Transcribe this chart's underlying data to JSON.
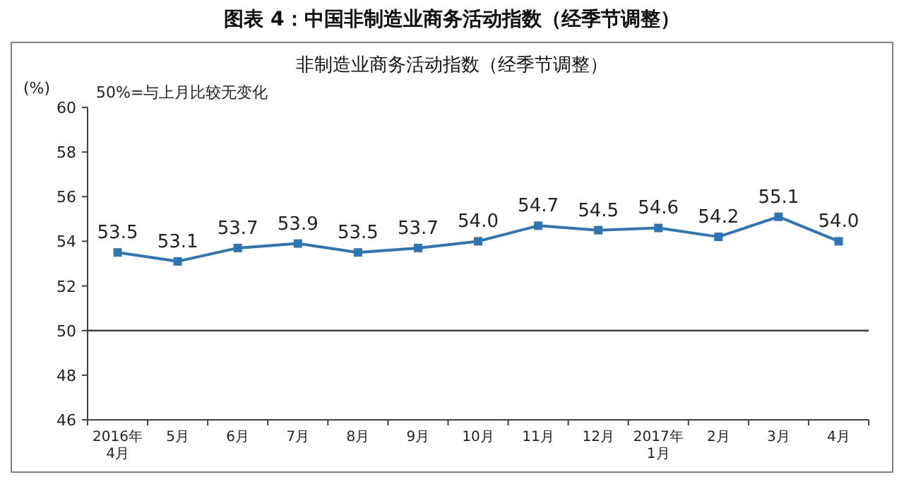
{
  "chart_data": {
    "type": "line",
    "title": "图表 4：中国非制造业商务活动指数（经季节调整）",
    "subtitle": "非制造业商务活动指数（经季节调整）",
    "ylabel": "(%)",
    "annotations": [
      "50%=与上月比较无变化"
    ],
    "categories": [
      "2016年\n4月",
      "5月",
      "6月",
      "7月",
      "8月",
      "9月",
      "10月",
      "11月",
      "12月",
      "2017年\n1月",
      "2月",
      "3月",
      "4月"
    ],
    "series": [
      {
        "color": "#2e75b6",
        "values": [
          53.5,
          53.1,
          53.7,
          53.9,
          53.5,
          53.7,
          54.0,
          54.7,
          54.5,
          54.6,
          54.2,
          55.1,
          54.0
        ],
        "value_labels": [
          "53.5",
          "53.1",
          "53.7",
          "53.9",
          "53.5",
          "53.7",
          "54.0",
          "54.7",
          "54.5",
          "54.6",
          "54.2",
          "55.1",
          "54.0"
        ]
      }
    ],
    "ylim": [
      46,
      60
    ],
    "yticks": [
      46,
      48,
      50,
      52,
      54,
      56,
      58,
      60
    ],
    "ref_lines": [
      {
        "axis": "y",
        "value": 50,
        "color": "#404040",
        "line_style": "solid"
      }
    ],
    "marker": "square",
    "line_style": "solid",
    "grid": false
  }
}
